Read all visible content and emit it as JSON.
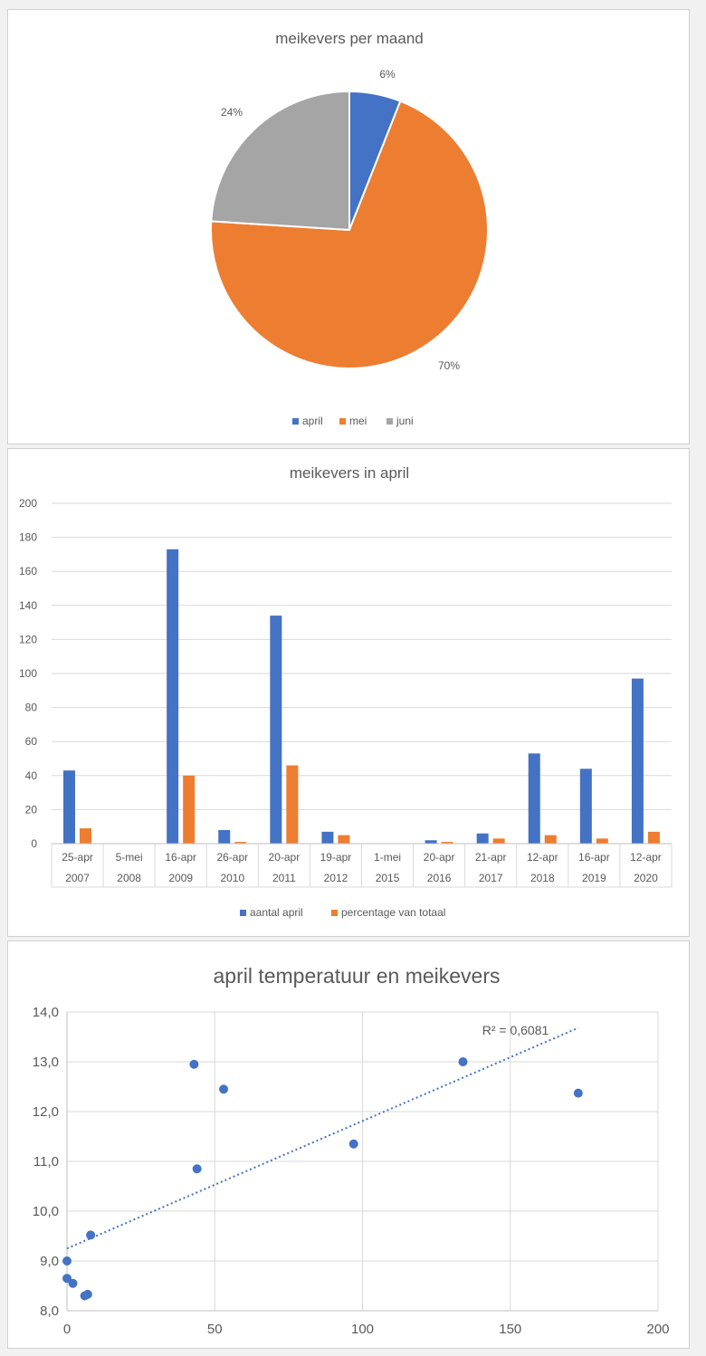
{
  "chart_data": [
    {
      "type": "pie",
      "title": "meikevers per maand",
      "categories": [
        "april",
        "mei",
        "juni"
      ],
      "values": [
        6,
        70,
        24
      ],
      "labels": [
        "6%",
        "70%",
        "24%"
      ],
      "colors": [
        "#4472c4",
        "#ed7d31",
        "#a5a5a5"
      ],
      "legend": "bottom"
    },
    {
      "type": "bar",
      "title": "meikevers in april",
      "categories": [
        {
          "date": "25-apr",
          "year": "2007"
        },
        {
          "date": "5-mei",
          "year": "2008"
        },
        {
          "date": "16-apr",
          "year": "2009"
        },
        {
          "date": "26-apr",
          "year": "2010"
        },
        {
          "date": "20-apr",
          "year": "2011"
        },
        {
          "date": "19-apr",
          "year": "2012"
        },
        {
          "date": "1-mei",
          "year": "2015"
        },
        {
          "date": "20-apr",
          "year": "2016"
        },
        {
          "date": "21-apr",
          "year": "2017"
        },
        {
          "date": "12-apr",
          "year": "2018"
        },
        {
          "date": "16-apr",
          "year": "2019"
        },
        {
          "date": "12-apr",
          "year": "2020"
        }
      ],
      "series": [
        {
          "name": "aantal april",
          "color": "#4472c4",
          "values": [
            43,
            0,
            173,
            8,
            134,
            7,
            0,
            2,
            6,
            53,
            44,
            97
          ]
        },
        {
          "name": "percentage van totaal",
          "color": "#ed7d31",
          "values": [
            9,
            0,
            40,
            1,
            46,
            5,
            0,
            1,
            3,
            5,
            3,
            7
          ]
        }
      ],
      "ylim": [
        0,
        200
      ],
      "yticks": [
        "0",
        "20",
        "40",
        "60",
        "80",
        "100",
        "120",
        "140",
        "160",
        "180",
        "200"
      ],
      "grid": true,
      "legend": "bottom"
    },
    {
      "type": "scatter",
      "title": "april temperatuur en meikevers",
      "points": [
        {
          "x": 0,
          "y": 9.0
        },
        {
          "x": 0,
          "y": 8.65
        },
        {
          "x": 2,
          "y": 8.55
        },
        {
          "x": 6,
          "y": 8.3
        },
        {
          "x": 7,
          "y": 8.33
        },
        {
          "x": 8,
          "y": 9.52
        },
        {
          "x": 43,
          "y": 12.95
        },
        {
          "x": 44,
          "y": 10.85
        },
        {
          "x": 53,
          "y": 12.45
        },
        {
          "x": 97,
          "y": 11.35
        },
        {
          "x": 134,
          "y": 13.0
        },
        {
          "x": 173,
          "y": 12.37
        }
      ],
      "trendline": {
        "type": "linear",
        "from": {
          "x": 0,
          "y": 9.25
        },
        "to": {
          "x": 173,
          "y": 13.68
        },
        "label": "R² = 0,6081"
      },
      "color": "#4472c4",
      "xlim": [
        0,
        200
      ],
      "ylim": [
        8.0,
        14.0
      ],
      "xticks": [
        "0",
        "50",
        "100",
        "150",
        "200"
      ],
      "yticks": [
        "8,0",
        "9,0",
        "10,0",
        "11,0",
        "12,0",
        "13,0",
        "14,0"
      ],
      "grid": true
    }
  ]
}
